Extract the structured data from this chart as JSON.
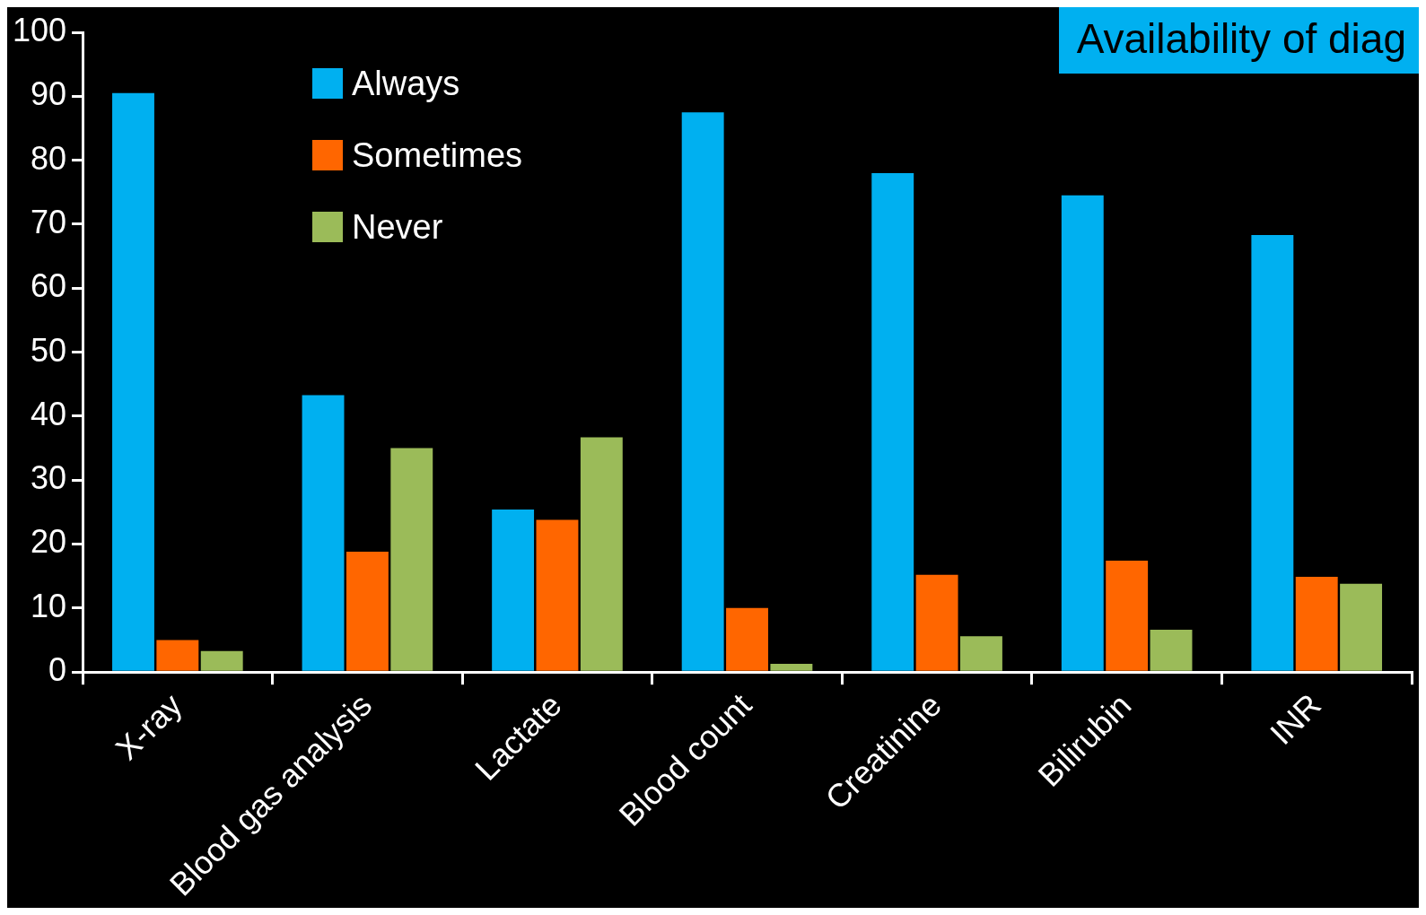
{
  "chart_data": {
    "type": "bar",
    "title": "Availability of diag",
    "categories": [
      "X-ray",
      "Blood gas analysis",
      "Lactate",
      "Blood count",
      "Creatinine",
      "Bilirubin",
      "INR"
    ],
    "series": [
      {
        "name": "Always",
        "color": "#00b0f0",
        "values": [
          90.5,
          43.3,
          25.4,
          87.5,
          78,
          74.5,
          68.3
        ]
      },
      {
        "name": "Sometimes",
        "color": "#ff6600",
        "values": [
          5,
          18.8,
          23.8,
          10,
          15.2,
          17.4,
          14.9
        ]
      },
      {
        "name": "Never",
        "color": "#9bbb59",
        "values": [
          3.3,
          35,
          36.7,
          1.3,
          5.6,
          6.6,
          13.8
        ]
      }
    ],
    "ylim": [
      0,
      100
    ],
    "yticks": [
      0,
      10,
      20,
      30,
      40,
      50,
      60,
      70,
      80,
      90,
      100
    ],
    "grid": false,
    "legend": "top left"
  }
}
